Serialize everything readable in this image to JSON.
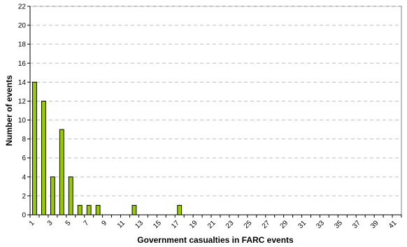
{
  "chart_data": {
    "type": "bar",
    "title": "",
    "xlabel": "Government casualties in FARC events",
    "ylabel": "Number of events",
    "x": [
      1,
      2,
      3,
      4,
      5,
      6,
      7,
      8,
      9,
      10,
      11,
      12,
      13,
      14,
      15,
      16,
      17,
      18,
      19,
      20,
      21,
      22,
      23,
      24,
      25,
      26,
      27,
      28,
      29,
      30,
      31,
      32,
      33,
      34,
      35,
      36,
      37,
      38,
      39,
      40,
      41
    ],
    "values": [
      14,
      12,
      4,
      9,
      4,
      1,
      1,
      1,
      0,
      0,
      0,
      1,
      0,
      0,
      0,
      0,
      1,
      0,
      0,
      0,
      0,
      0,
      0,
      0,
      0,
      0,
      0,
      0,
      0,
      0,
      0,
      0,
      0,
      0,
      0,
      0,
      0,
      0,
      0,
      0,
      0
    ],
    "x_tick_labels": [
      "1",
      "3",
      "5",
      "7",
      "9",
      "11",
      "13",
      "15",
      "17",
      "19",
      "21",
      "23",
      "25",
      "27",
      "29",
      "31",
      "33",
      "35",
      "37",
      "39",
      "41"
    ],
    "y_tick_labels": [
      "0",
      "2",
      "4",
      "6",
      "8",
      "10",
      "12",
      "14",
      "16",
      "18",
      "20",
      "22"
    ],
    "ylim": [
      0,
      22
    ],
    "grid": "horizontal dashed",
    "legend": "none",
    "colors": {
      "bar": "#99cc00",
      "bar_border": "#000000",
      "plot_background": "#ffffff",
      "grid": "#bfbfbf"
    }
  }
}
